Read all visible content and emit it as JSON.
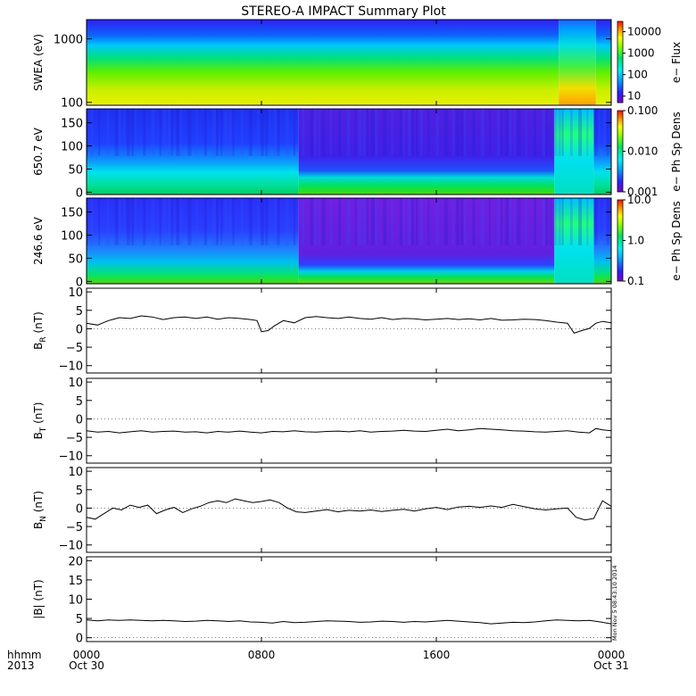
{
  "title": "STEREO-A IMPACT Summary Plot",
  "stamp": "Mon Nov  5 08:43:10 2014",
  "time_axis": {
    "row_label_1": "hhmm",
    "row_label_2": "2013",
    "ticks": [
      {
        "t": 0,
        "top": "0000",
        "bottom": "Oct 30"
      },
      {
        "t": 8,
        "top": "0800",
        "bottom": ""
      },
      {
        "t": 16,
        "top": "1600",
        "bottom": ""
      },
      {
        "t": 24,
        "top": "0000",
        "bottom": "Oct 31"
      }
    ],
    "range_hours": [
      0,
      24
    ]
  },
  "chart_data": [
    {
      "type": "heatmap",
      "ylabel": "SWEA (eV)",
      "yscale": "log",
      "ylim": [
        90,
        2000
      ],
      "yticks": [
        {
          "v": 100,
          "label": "100"
        },
        {
          "v": 1000,
          "label": "1000"
        }
      ],
      "colorbar": {
        "label": "e− Flux",
        "scale": "log",
        "range": [
          5,
          30000
        ],
        "ticks": [
          {
            "v": 10,
            "label": "10"
          },
          {
            "v": 100,
            "label": "100"
          },
          {
            "v": 1000,
            "label": "1000"
          },
          {
            "v": 10000,
            "label": "10000"
          }
        ]
      },
      "regimes": [
        {
          "from_hour": 0,
          "to_hour": 21.6,
          "description_color_low_energy": "yellow",
          "description_color_high_energy": "blue"
        },
        {
          "from_hour": 21.6,
          "to_hour": 23.2,
          "description_color_low_energy": "orange",
          "description_color_high_energy": "cyan"
        }
      ]
    },
    {
      "type": "heatmap",
      "ylabel": "650.7 eV",
      "ylim": [
        -5,
        180
      ],
      "yticks": [
        {
          "v": 0,
          "label": "0"
        },
        {
          "v": 50,
          "label": "50"
        },
        {
          "v": 100,
          "label": "100"
        },
        {
          "v": 150,
          "label": "150"
        }
      ],
      "colorbar": {
        "label": "e− Ph Sp Dens",
        "scale": "log",
        "range": [
          0.001,
          0.1
        ],
        "ticks": [
          {
            "v": 0.001,
            "label": "0.001"
          },
          {
            "v": 0.01,
            "label": "0.010"
          },
          {
            "v": 0.1,
            "label": "0.100"
          }
        ]
      }
    },
    {
      "type": "heatmap",
      "ylabel": "246.6 eV",
      "ylim": [
        -5,
        180
      ],
      "yticks": [
        {
          "v": 0,
          "label": "0"
        },
        {
          "v": 50,
          "label": "50"
        },
        {
          "v": 100,
          "label": "100"
        },
        {
          "v": 150,
          "label": "150"
        }
      ],
      "colorbar": {
        "label": "e− Ph Sp Dens",
        "scale": "log",
        "range": [
          0.1,
          10
        ],
        "ticks": [
          {
            "v": 0.1,
            "label": "0.1"
          },
          {
            "v": 1,
            "label": "1.0"
          },
          {
            "v": 10,
            "label": "10.0"
          }
        ]
      }
    },
    {
      "type": "line",
      "ylabel_main": "B",
      "ylabel_sub": "R",
      "ylabel_unit": " (nT)",
      "ylim": [
        -12,
        11
      ],
      "yticks": [
        {
          "v": -10,
          "label": "−10"
        },
        {
          "v": -5,
          "label": "−5"
        },
        {
          "v": 0,
          "label": "0"
        },
        {
          "v": 5,
          "label": "5"
        },
        {
          "v": 10,
          "label": "10"
        }
      ],
      "x": [
        0,
        0.5,
        1,
        1.5,
        2,
        2.5,
        3,
        3.5,
        4,
        4.5,
        5,
        5.5,
        6,
        6.5,
        7,
        7.5,
        7.8,
        8,
        8.3,
        8.6,
        9,
        9.5,
        10,
        10.5,
        11,
        11.5,
        12,
        12.5,
        13,
        13.5,
        14,
        14.5,
        15,
        15.5,
        16,
        16.5,
        17,
        17.5,
        18,
        18.5,
        19,
        19.5,
        20,
        20.5,
        21,
        21.5,
        22,
        22.3,
        22.6,
        23,
        23.3,
        23.6,
        24
      ],
      "y": [
        1.5,
        1,
        2.2,
        3,
        2.8,
        3.5,
        3.2,
        2.5,
        3,
        3.2,
        2.8,
        3.2,
        2.6,
        3,
        2.8,
        2.5,
        2.2,
        -0.8,
        -0.5,
        0.8,
        2.2,
        1.6,
        3,
        3.3,
        3,
        2.8,
        3.2,
        2.8,
        2.6,
        3,
        2.5,
        2.8,
        2.7,
        2.4,
        2.6,
        2.8,
        2.5,
        2.7,
        2.4,
        2.8,
        2.3,
        2.4,
        2.6,
        2.5,
        2.2,
        1.8,
        1.5,
        -1.2,
        -0.6,
        0.1,
        1.5,
        2,
        1.6
      ]
    },
    {
      "type": "line",
      "ylabel_main": "B",
      "ylabel_sub": "T",
      "ylabel_unit": " (nT)",
      "ylim": [
        -12,
        11
      ],
      "yticks": [
        {
          "v": -10,
          "label": "−10"
        },
        {
          "v": -5,
          "label": "−5"
        },
        {
          "v": 0,
          "label": "0"
        },
        {
          "v": 5,
          "label": "5"
        },
        {
          "v": 10,
          "label": "10"
        }
      ],
      "x": [
        0,
        0.5,
        1,
        1.5,
        2,
        2.5,
        3,
        3.5,
        4,
        4.5,
        5,
        5.5,
        6,
        6.5,
        7,
        7.5,
        8,
        8.5,
        9,
        9.5,
        10,
        10.5,
        11,
        11.5,
        12,
        12.5,
        13,
        13.5,
        14,
        14.5,
        15,
        15.5,
        16,
        16.5,
        17,
        17.5,
        18,
        18.5,
        19,
        19.5,
        20,
        20.5,
        21,
        21.5,
        22,
        22.5,
        23,
        23.3,
        23.6,
        24
      ],
      "y": [
        -3.2,
        -3.6,
        -3.4,
        -3.8,
        -3.5,
        -3.2,
        -3.6,
        -3.4,
        -3.3,
        -3.6,
        -3.5,
        -3.8,
        -3.4,
        -3.6,
        -3.3,
        -3.6,
        -3.8,
        -3.4,
        -3.5,
        -3.2,
        -3.5,
        -3.6,
        -3.4,
        -3.3,
        -3.5,
        -3.2,
        -3.6,
        -3.4,
        -3.3,
        -3.1,
        -3.3,
        -3.4,
        -3.1,
        -2.8,
        -3.2,
        -3,
        -2.6,
        -2.8,
        -3,
        -3.2,
        -3.3,
        -3.5,
        -3.6,
        -3.4,
        -3.2,
        -3.6,
        -3.8,
        -2.6,
        -3,
        -3.2
      ]
    },
    {
      "type": "line",
      "ylabel_main": "B",
      "ylabel_sub": "N",
      "ylabel_unit": " (nT)",
      "ylim": [
        -12,
        11
      ],
      "yticks": [
        {
          "v": -10,
          "label": "−10"
        },
        {
          "v": -5,
          "label": "−5"
        },
        {
          "v": 0,
          "label": "0"
        },
        {
          "v": 5,
          "label": "5"
        },
        {
          "v": 10,
          "label": "10"
        }
      ],
      "x": [
        0,
        0.4,
        0.8,
        1.2,
        1.6,
        2,
        2.4,
        2.8,
        3.2,
        3.6,
        4,
        4.4,
        4.8,
        5.2,
        5.6,
        6,
        6.4,
        6.8,
        7.2,
        7.6,
        8,
        8.4,
        8.8,
        9.2,
        9.6,
        10,
        10.5,
        11,
        11.5,
        12,
        12.5,
        13,
        13.5,
        14,
        14.5,
        15,
        15.5,
        16,
        16.5,
        17,
        17.5,
        18,
        18.5,
        19,
        19.5,
        20,
        20.5,
        21,
        21.5,
        22,
        22.4,
        22.8,
        23.2,
        23.6,
        24
      ],
      "y": [
        -2.5,
        -3,
        -1.5,
        0,
        -0.5,
        0.8,
        0.2,
        0.8,
        -1.5,
        -0.5,
        0.2,
        -1.2,
        -0.2,
        0.5,
        1.5,
        2,
        1.5,
        2.5,
        2,
        1.5,
        1.8,
        2.2,
        1.5,
        0,
        -1,
        -1.2,
        -0.8,
        -0.4,
        -1,
        -0.6,
        -0.8,
        -0.5,
        -0.9,
        -0.6,
        -0.3,
        -0.8,
        -0.2,
        0.2,
        -0.4,
        0.3,
        0.5,
        0.2,
        0.6,
        0.2,
        1,
        0.4,
        -0.2,
        -0.5,
        -0.2,
        0,
        -2.5,
        -3.2,
        -2.8,
        2,
        0.5
      ]
    },
    {
      "type": "line",
      "ylabel": "|B| (nT)",
      "ylim": [
        -1,
        21
      ],
      "yticks": [
        {
          "v": 0,
          "label": "0"
        },
        {
          "v": 5,
          "label": "5"
        },
        {
          "v": 10,
          "label": "10"
        },
        {
          "v": 15,
          "label": "15"
        },
        {
          "v": 20,
          "label": "20"
        }
      ],
      "x": [
        0,
        0.5,
        1,
        1.5,
        2,
        2.5,
        3,
        3.5,
        4,
        4.5,
        5,
        5.5,
        6,
        6.5,
        7,
        7.5,
        8,
        8.5,
        9,
        9.5,
        10,
        10.5,
        11,
        11.5,
        12,
        12.5,
        13,
        13.5,
        14,
        14.5,
        15,
        15.5,
        16,
        16.5,
        17,
        17.5,
        18,
        18.5,
        19,
        19.5,
        20,
        20.5,
        21,
        21.5,
        22,
        22.5,
        23,
        23.5,
        24
      ],
      "y": [
        4.6,
        4.4,
        4.6,
        4.5,
        4.6,
        4.5,
        4.4,
        4.5,
        4.4,
        4.2,
        4.3,
        4.5,
        4.4,
        4.2,
        4.4,
        4.1,
        4,
        3.8,
        4.2,
        3.9,
        4,
        4.2,
        4.4,
        4.3,
        4.2,
        4,
        4.1,
        4.3,
        4.2,
        4,
        4.2,
        4.1,
        4.3,
        4.5,
        4.3,
        4.1,
        3.9,
        3.6,
        3.8,
        4,
        3.9,
        4.1,
        4.4,
        4.6,
        4.5,
        4.4,
        4.5,
        4.1,
        3.6
      ]
    }
  ]
}
